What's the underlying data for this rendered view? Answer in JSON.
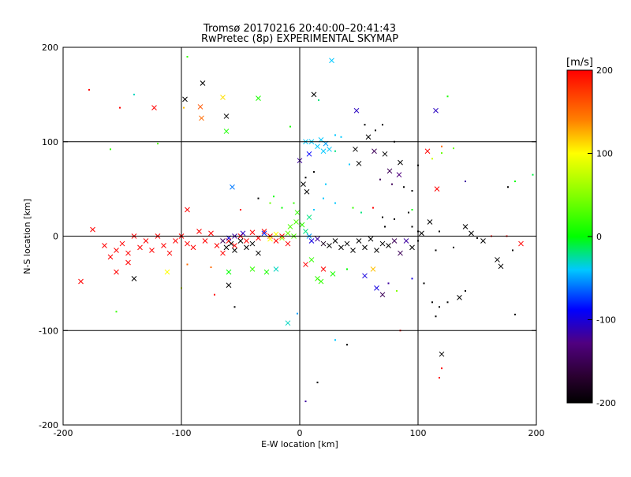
{
  "chart_data": {
    "type": "scatter",
    "title": "Tromsø 20170216 20:40:00–20:41:43",
    "subtitle": "RwPretec (8p) EXPERIMENTAL SKYMAP",
    "xlabel": "E-W location [km]",
    "ylabel": "N-S location [km]",
    "xlim": [
      -200,
      200
    ],
    "ylim": [
      -200,
      200
    ],
    "xticks": [
      -200,
      -100,
      0,
      100,
      200
    ],
    "yticks": [
      -200,
      -100,
      0,
      100,
      200
    ],
    "grid_lines": [
      -100,
      0,
      100
    ],
    "markers": [
      "x",
      "dot"
    ],
    "colorbar": {
      "label": "[m/s]",
      "range": [
        -200,
        200
      ],
      "ticks": [
        200,
        100,
        0,
        -100,
        -200
      ],
      "colormap": [
        "#000000",
        "#400040",
        "#0000ff",
        "#00ffff",
        "#00ff00",
        "#ffff00",
        "#ff8000",
        "#ff0000"
      ]
    },
    "points": [
      [
        -178,
        155,
        200,
        "dot"
      ],
      [
        -152,
        136,
        200,
        "dot"
      ],
      [
        -123,
        136,
        200,
        "x"
      ],
      [
        -98,
        136,
        120,
        "dot"
      ],
      [
        -84,
        137,
        160,
        "x"
      ],
      [
        -82,
        162,
        -200,
        "x"
      ],
      [
        -97,
        145,
        -200,
        "x"
      ],
      [
        -83,
        125,
        150,
        "x"
      ],
      [
        -65,
        147,
        110,
        "x"
      ],
      [
        -62,
        127,
        -200,
        "x"
      ],
      [
        -62,
        111,
        10,
        "x"
      ],
      [
        -35,
        146,
        10,
        "x"
      ],
      [
        -140,
        150,
        -30,
        "dot"
      ],
      [
        -95,
        190,
        20,
        "dot"
      ],
      [
        -160,
        92,
        20,
        "dot"
      ],
      [
        -120,
        98,
        30,
        "dot"
      ],
      [
        12,
        150,
        -200,
        "x"
      ],
      [
        27,
        186,
        -40,
        "x"
      ],
      [
        16,
        144,
        -20,
        "dot"
      ],
      [
        48,
        133,
        -110,
        "x"
      ],
      [
        115,
        133,
        -110,
        "x"
      ],
      [
        125,
        148,
        10,
        "dot"
      ],
      [
        -8,
        116,
        10,
        "dot"
      ],
      [
        30,
        107,
        -40,
        "dot"
      ],
      [
        -57,
        52,
        -60,
        "x"
      ],
      [
        -35,
        40,
        -200,
        "dot"
      ],
      [
        -22,
        42,
        0,
        "dot"
      ],
      [
        8,
        87,
        -90,
        "x"
      ],
      [
        0,
        80,
        -120,
        "x"
      ],
      [
        5,
        100,
        -40,
        "x"
      ],
      [
        10,
        100,
        -40,
        "x"
      ],
      [
        15,
        95,
        -40,
        "x"
      ],
      [
        20,
        90,
        -40,
        "x"
      ],
      [
        25,
        92,
        -40,
        "x"
      ],
      [
        18,
        102,
        -40,
        "x"
      ],
      [
        22,
        98,
        -50,
        "x"
      ],
      [
        30,
        90,
        -20,
        "dot"
      ],
      [
        35,
        105,
        -40,
        "dot"
      ],
      [
        3,
        55,
        -200,
        "x"
      ],
      [
        6,
        47,
        -200,
        "x"
      ],
      [
        5,
        62,
        -200,
        "dot"
      ],
      [
        12,
        68,
        -200,
        "dot"
      ],
      [
        22,
        55,
        -40,
        "dot"
      ],
      [
        42,
        76,
        -40,
        "dot"
      ],
      [
        50,
        77,
        -200,
        "x"
      ],
      [
        47,
        92,
        -200,
        "x"
      ],
      [
        58,
        105,
        -200,
        "x"
      ],
      [
        63,
        90,
        -150,
        "x"
      ],
      [
        72,
        87,
        -200,
        "x"
      ],
      [
        85,
        78,
        -200,
        "x"
      ],
      [
        76,
        69,
        -150,
        "x"
      ],
      [
        84,
        65,
        -130,
        "x"
      ],
      [
        68,
        60,
        -150,
        "dot"
      ],
      [
        88,
        52,
        -200,
        "dot"
      ],
      [
        95,
        48,
        -200,
        "dot"
      ],
      [
        78,
        55,
        -150,
        "dot"
      ],
      [
        64,
        112,
        -200,
        "dot"
      ],
      [
        70,
        118,
        -200,
        "dot"
      ],
      [
        55,
        118,
        -200,
        "dot"
      ],
      [
        80,
        100,
        -200,
        "dot"
      ],
      [
        100,
        75,
        -200,
        "dot"
      ],
      [
        108,
        90,
        200,
        "x"
      ],
      [
        120,
        95,
        150,
        "dot"
      ],
      [
        130,
        93,
        40,
        "dot"
      ],
      [
        112,
        82,
        80,
        "dot"
      ],
      [
        120,
        88,
        40,
        "dot"
      ],
      [
        116,
        50,
        200,
        "x"
      ],
      [
        140,
        58,
        -120,
        "dot"
      ],
      [
        176,
        52,
        -200,
        "dot"
      ],
      [
        182,
        58,
        0,
        "dot"
      ],
      [
        197,
        65,
        -10,
        "dot"
      ],
      [
        -175,
        7,
        200,
        "x"
      ],
      [
        -165,
        -10,
        200,
        "x"
      ],
      [
        -160,
        -22,
        200,
        "x"
      ],
      [
        -155,
        -15,
        200,
        "x"
      ],
      [
        -150,
        -8,
        200,
        "x"
      ],
      [
        -145,
        -18,
        200,
        "x"
      ],
      [
        -140,
        0,
        200,
        "x"
      ],
      [
        -135,
        -12,
        200,
        "x"
      ],
      [
        -130,
        -5,
        200,
        "x"
      ],
      [
        -125,
        -15,
        200,
        "x"
      ],
      [
        -120,
        0,
        200,
        "x"
      ],
      [
        -115,
        -10,
        200,
        "x"
      ],
      [
        -110,
        -18,
        200,
        "x"
      ],
      [
        -105,
        -5,
        200,
        "x"
      ],
      [
        -100,
        0,
        200,
        "x"
      ],
      [
        -95,
        -8,
        200,
        "x"
      ],
      [
        -90,
        -12,
        200,
        "x"
      ],
      [
        -85,
        5,
        200,
        "x"
      ],
      [
        -80,
        -5,
        200,
        "x"
      ],
      [
        -75,
        3,
        200,
        "x"
      ],
      [
        -70,
        -10,
        200,
        "x"
      ],
      [
        -65,
        -18,
        200,
        "x"
      ],
      [
        -60,
        -5,
        200,
        "x"
      ],
      [
        -55,
        -10,
        200,
        "x"
      ],
      [
        -50,
        0,
        200,
        "x"
      ],
      [
        -45,
        -5,
        200,
        "x"
      ],
      [
        -40,
        4,
        200,
        "x"
      ],
      [
        -35,
        -2,
        200,
        "x"
      ],
      [
        -30,
        5,
        200,
        "x"
      ],
      [
        -25,
        0,
        200,
        "x"
      ],
      [
        -20,
        -5,
        200,
        "x"
      ],
      [
        -15,
        0,
        200,
        "x"
      ],
      [
        -10,
        -8,
        200,
        "x"
      ],
      [
        -62,
        -12,
        -200,
        "x"
      ],
      [
        -58,
        -8,
        -200,
        "x"
      ],
      [
        -55,
        -15,
        -200,
        "x"
      ],
      [
        -50,
        -5,
        -200,
        "x"
      ],
      [
        -45,
        -12,
        -200,
        "x"
      ],
      [
        -40,
        -8,
        -200,
        "x"
      ],
      [
        -35,
        -18,
        -200,
        "x"
      ],
      [
        -65,
        -5,
        -150,
        "x"
      ],
      [
        -60,
        -2,
        -100,
        "x"
      ],
      [
        -55,
        0,
        -120,
        "x"
      ],
      [
        -48,
        3,
        -110,
        "x"
      ],
      [
        -30,
        3,
        -80,
        "x"
      ],
      [
        -25,
        -3,
        100,
        "x"
      ],
      [
        -20,
        2,
        100,
        "x"
      ],
      [
        -15,
        -2,
        60,
        "x"
      ],
      [
        -10,
        3,
        40,
        "x"
      ],
      [
        -5,
        0,
        30,
        "x"
      ],
      [
        -8,
        10,
        30,
        "x"
      ],
      [
        -3,
        15,
        30,
        "x"
      ],
      [
        2,
        12,
        20,
        "x"
      ],
      [
        5,
        5,
        -20,
        "x"
      ],
      [
        8,
        0,
        -50,
        "x"
      ],
      [
        10,
        -5,
        -100,
        "x"
      ],
      [
        15,
        -3,
        -120,
        "x"
      ],
      [
        20,
        -8,
        -180,
        "x"
      ],
      [
        25,
        -10,
        -200,
        "x"
      ],
      [
        30,
        -5,
        -200,
        "x"
      ],
      [
        35,
        -12,
        -200,
        "x"
      ],
      [
        40,
        -8,
        -200,
        "x"
      ],
      [
        45,
        -15,
        -200,
        "x"
      ],
      [
        50,
        -5,
        -200,
        "x"
      ],
      [
        55,
        -12,
        -200,
        "x"
      ],
      [
        60,
        -3,
        -200,
        "x"
      ],
      [
        65,
        -15,
        -200,
        "x"
      ],
      [
        70,
        -8,
        -200,
        "x"
      ],
      [
        75,
        -10,
        -200,
        "x"
      ],
      [
        80,
        -5,
        -150,
        "x"
      ],
      [
        85,
        -18,
        -150,
        "x"
      ],
      [
        90,
        -5,
        -120,
        "x"
      ],
      [
        95,
        -12,
        -200,
        "x"
      ],
      [
        100,
        -5,
        -200,
        "dot"
      ],
      [
        115,
        -15,
        -200,
        "dot"
      ],
      [
        130,
        -12,
        -200,
        "dot"
      ],
      [
        140,
        10,
        -200,
        "x"
      ],
      [
        145,
        3,
        -200,
        "x"
      ],
      [
        150,
        -2,
        -200,
        "dot"
      ],
      [
        155,
        -5,
        -200,
        "x"
      ],
      [
        167,
        -25,
        -200,
        "x"
      ],
      [
        170,
        -32,
        -200,
        "x"
      ],
      [
        180,
        -15,
        -200,
        "dot"
      ],
      [
        187,
        -8,
        200,
        "x"
      ],
      [
        175,
        0,
        200,
        "dot"
      ],
      [
        162,
        0,
        200,
        "dot"
      ],
      [
        -185,
        -48,
        200,
        "x"
      ],
      [
        -155,
        -38,
        200,
        "x"
      ],
      [
        -145,
        -28,
        200,
        "x"
      ],
      [
        -140,
        -45,
        -200,
        "x"
      ],
      [
        -112,
        -38,
        100,
        "x"
      ],
      [
        -100,
        -55,
        80,
        "dot"
      ],
      [
        -95,
        -30,
        150,
        "dot"
      ],
      [
        -75,
        -33,
        150,
        "dot"
      ],
      [
        -60,
        -52,
        -200,
        "x"
      ],
      [
        -55,
        -75,
        -200,
        "dot"
      ],
      [
        -72,
        -62,
        200,
        "dot"
      ],
      [
        -60,
        -38,
        0,
        "x"
      ],
      [
        -40,
        -35,
        20,
        "x"
      ],
      [
        -28,
        -38,
        10,
        "x"
      ],
      [
        -20,
        -35,
        -30,
        "x"
      ],
      [
        5,
        -30,
        200,
        "x"
      ],
      [
        20,
        -35,
        200,
        "x"
      ],
      [
        10,
        -25,
        20,
        "x"
      ],
      [
        15,
        -45,
        20,
        "x"
      ],
      [
        18,
        -48,
        20,
        "x"
      ],
      [
        28,
        -40,
        10,
        "x"
      ],
      [
        40,
        -35,
        0,
        "dot"
      ],
      [
        55,
        -42,
        -100,
        "x"
      ],
      [
        62,
        -35,
        120,
        "x"
      ],
      [
        65,
        -55,
        -100,
        "x"
      ],
      [
        70,
        -62,
        -150,
        "x"
      ],
      [
        75,
        -50,
        -120,
        "dot"
      ],
      [
        82,
        -58,
        50,
        "dot"
      ],
      [
        95,
        -45,
        -100,
        "dot"
      ],
      [
        105,
        -50,
        -200,
        "dot"
      ],
      [
        112,
        -70,
        -200,
        "dot"
      ],
      [
        118,
        -75,
        -200,
        "dot"
      ],
      [
        125,
        -70,
        -200,
        "dot"
      ],
      [
        135,
        -65,
        -200,
        "x"
      ],
      [
        140,
        -58,
        -200,
        "dot"
      ],
      [
        182,
        -83,
        -200,
        "dot"
      ],
      [
        115,
        -85,
        -200,
        "dot"
      ],
      [
        -10,
        -92,
        -30,
        "x"
      ],
      [
        -2,
        -82,
        -50,
        "dot"
      ],
      [
        -155,
        -80,
        20,
        "dot"
      ],
      [
        30,
        -110,
        -40,
        "dot"
      ],
      [
        40,
        -115,
        -200,
        "dot"
      ],
      [
        85,
        -100,
        200,
        "dot"
      ],
      [
        120,
        -125,
        -200,
        "x"
      ],
      [
        120,
        -140,
        200,
        "dot"
      ],
      [
        118,
        -150,
        200,
        "dot"
      ],
      [
        15,
        -155,
        -200,
        "dot"
      ],
      [
        5,
        -175,
        -120,
        "dot"
      ],
      [
        -95,
        28,
        200,
        "x"
      ],
      [
        -50,
        28,
        200,
        "dot"
      ],
      [
        -25,
        35,
        40,
        "dot"
      ],
      [
        -15,
        30,
        0,
        "dot"
      ],
      [
        -5,
        35,
        20,
        "dot"
      ],
      [
        -2,
        25,
        20,
        "x"
      ],
      [
        8,
        20,
        -20,
        "x"
      ],
      [
        12,
        28,
        -40,
        "dot"
      ],
      [
        20,
        40,
        -40,
        "dot"
      ],
      [
        30,
        35,
        -40,
        "dot"
      ],
      [
        45,
        30,
        20,
        "dot"
      ],
      [
        52,
        25,
        -20,
        "dot"
      ],
      [
        62,
        30,
        200,
        "dot"
      ],
      [
        70,
        20,
        -200,
        "dot"
      ],
      [
        72,
        10,
        -200,
        "dot"
      ],
      [
        80,
        18,
        -200,
        "dot"
      ],
      [
        92,
        25,
        -200,
        "dot"
      ],
      [
        95,
        10,
        -200,
        "dot"
      ],
      [
        100,
        5,
        -200,
        "dot"
      ],
      [
        103,
        3,
        -200,
        "x"
      ],
      [
        110,
        15,
        -200,
        "x"
      ],
      [
        118,
        5,
        -200,
        "dot"
      ],
      [
        95,
        28,
        0,
        "dot"
      ]
    ]
  }
}
